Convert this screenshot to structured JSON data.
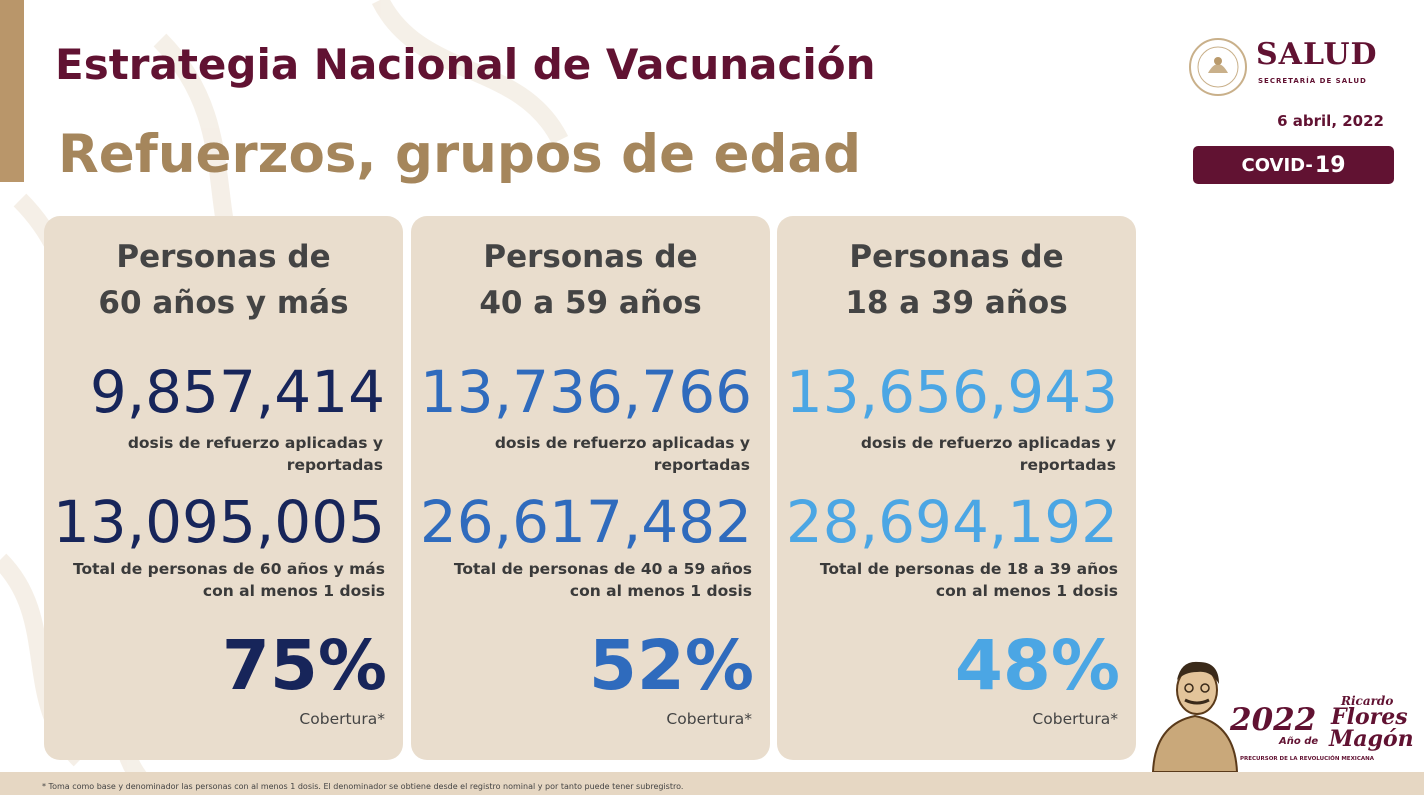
{
  "header": {
    "title": "Estrategia Nacional de Vacunación",
    "subtitle": "Refuerzos, grupos de edad",
    "date": "6 abril, 2022",
    "badge_prefix": "COVID-",
    "badge_number": "19"
  },
  "logo": {
    "name": "SALUD",
    "tagline": "SECRETARÍA DE SALUD",
    "icon": "coat-of-arms-icon"
  },
  "cards": [
    {
      "title_line1": "Personas de",
      "title_line2": "60 años y más",
      "boosters": "9,857,414",
      "boosters_label_line1": "dosis de refuerzo aplicadas y",
      "boosters_label_line2": "reportadas",
      "total": "13,095,005",
      "total_label_line1": "Total de personas de 60 años y más",
      "total_label_line2": "con al menos 1 dosis",
      "coverage": "75%",
      "coverage_label": "Cobertura*",
      "color": "#17255a"
    },
    {
      "title_line1": "Personas de",
      "title_line2": "40 a 59 años",
      "boosters": "13,736,766",
      "boosters_label_line1": "dosis de refuerzo aplicadas y",
      "boosters_label_line2": "reportadas",
      "total": "26,617,482",
      "total_label_line1": "Total de personas de 40 a 59 años",
      "total_label_line2": "con al menos 1 dosis",
      "coverage": "52%",
      "coverage_label": "Cobertura*",
      "color": "#2f6bbd"
    },
    {
      "title_line1": "Personas de",
      "title_line2": "18 a 39 años",
      "boosters": "13,656,943",
      "boosters_label_line1": "dosis de refuerzo aplicadas y",
      "boosters_label_line2": "reportadas",
      "total": "28,694,192",
      "total_label_line1": "Total de personas de 18 a 39 años",
      "total_label_line2": "con al menos 1 dosis",
      "coverage": "48%",
      "coverage_label": "Cobertura*",
      "color": "#4ba6e4"
    }
  ],
  "footnote": "* Toma como base y denominador las personas con al menos 1 dosis. El denominador se obtiene desde el registro nominal y por tanto puede tener subregistro.",
  "anniversary": {
    "year": "2022",
    "year_label": "Año de",
    "first_name": "Ricardo",
    "last_name_1": "Flores",
    "last_name_2": "Magón",
    "tagline": "PRECURSOR DE LA REVOLUCIÓN MEXICANA",
    "icon": "ricardo-flores-magon-portrait-icon"
  },
  "colors": {
    "brand": "#611232",
    "gold": "#a5865c",
    "card_bg": "#e9ddcd",
    "dark_blue": "#17255a",
    "mid_blue": "#2f6bbd",
    "light_blue": "#4ba6e4"
  }
}
